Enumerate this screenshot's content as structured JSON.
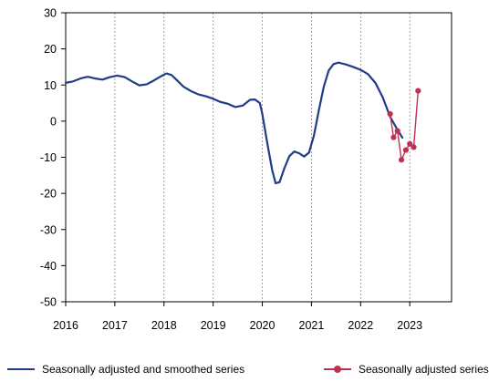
{
  "chart_data": {
    "type": "line",
    "x_ticks": [
      "2016",
      "2017",
      "2018",
      "2019",
      "2020",
      "2021",
      "2022",
      "2023"
    ],
    "y_ticks": [
      "30",
      "20",
      "10",
      "0",
      "-10",
      "-20",
      "-30",
      "-40",
      "-50"
    ],
    "xlim": [
      2016,
      2023.85
    ],
    "ylim": [
      -50,
      30
    ],
    "grid": "vertical dashed at year ticks",
    "legend_position": "bottom",
    "series": [
      {
        "name": "Seasonally adjusted and smoothed series",
        "color": "#1f3c88",
        "points": [
          [
            2016.0,
            10.6
          ],
          [
            2016.15,
            11.0
          ],
          [
            2016.3,
            11.8
          ],
          [
            2016.45,
            12.3
          ],
          [
            2016.6,
            11.8
          ],
          [
            2016.75,
            11.5
          ],
          [
            2016.9,
            12.2
          ],
          [
            2017.05,
            12.6
          ],
          [
            2017.2,
            12.2
          ],
          [
            2017.35,
            11.0
          ],
          [
            2017.5,
            9.9
          ],
          [
            2017.65,
            10.2
          ],
          [
            2017.8,
            11.3
          ],
          [
            2017.95,
            12.5
          ],
          [
            2018.05,
            13.2
          ],
          [
            2018.15,
            12.8
          ],
          [
            2018.25,
            11.5
          ],
          [
            2018.4,
            9.5
          ],
          [
            2018.55,
            8.3
          ],
          [
            2018.7,
            7.4
          ],
          [
            2018.85,
            6.9
          ],
          [
            2019.0,
            6.2
          ],
          [
            2019.15,
            5.3
          ],
          [
            2019.3,
            4.8
          ],
          [
            2019.45,
            3.9
          ],
          [
            2019.6,
            4.3
          ],
          [
            2019.75,
            5.9
          ],
          [
            2019.85,
            6.0
          ],
          [
            2019.95,
            5.0
          ],
          [
            2020.0,
            2.0
          ],
          [
            2020.1,
            -6.0
          ],
          [
            2020.2,
            -13.5
          ],
          [
            2020.27,
            -17.2
          ],
          [
            2020.35,
            -16.9
          ],
          [
            2020.45,
            -13.0
          ],
          [
            2020.55,
            -9.7
          ],
          [
            2020.65,
            -8.4
          ],
          [
            2020.75,
            -8.9
          ],
          [
            2020.85,
            -9.8
          ],
          [
            2020.95,
            -8.7
          ],
          [
            2021.05,
            -4.0
          ],
          [
            2021.15,
            3.0
          ],
          [
            2021.25,
            9.5
          ],
          [
            2021.35,
            14.0
          ],
          [
            2021.45,
            15.8
          ],
          [
            2021.55,
            16.2
          ],
          [
            2021.7,
            15.7
          ],
          [
            2021.85,
            15.0
          ],
          [
            2022.0,
            14.2
          ],
          [
            2022.15,
            13.0
          ],
          [
            2022.3,
            10.6
          ],
          [
            2022.45,
            6.6
          ],
          [
            2022.6,
            1.2
          ],
          [
            2022.75,
            -2.4
          ],
          [
            2022.85,
            -4.6
          ]
        ]
      },
      {
        "name": "Seasonally adjusted series",
        "color": "#c0304f",
        "points": [
          [
            2022.6,
            2.0
          ],
          [
            2022.67,
            -4.5
          ],
          [
            2022.75,
            -2.7
          ],
          [
            2022.83,
            -10.7
          ],
          [
            2022.92,
            -8.0
          ],
          [
            2023.0,
            -6.3
          ],
          [
            2023.08,
            -7.2
          ],
          [
            2023.17,
            8.4
          ]
        ]
      }
    ]
  },
  "legend": {
    "item1_label": "Seasonally adjusted and smoothed series",
    "item2_label": "Seasonally adjusted series"
  }
}
